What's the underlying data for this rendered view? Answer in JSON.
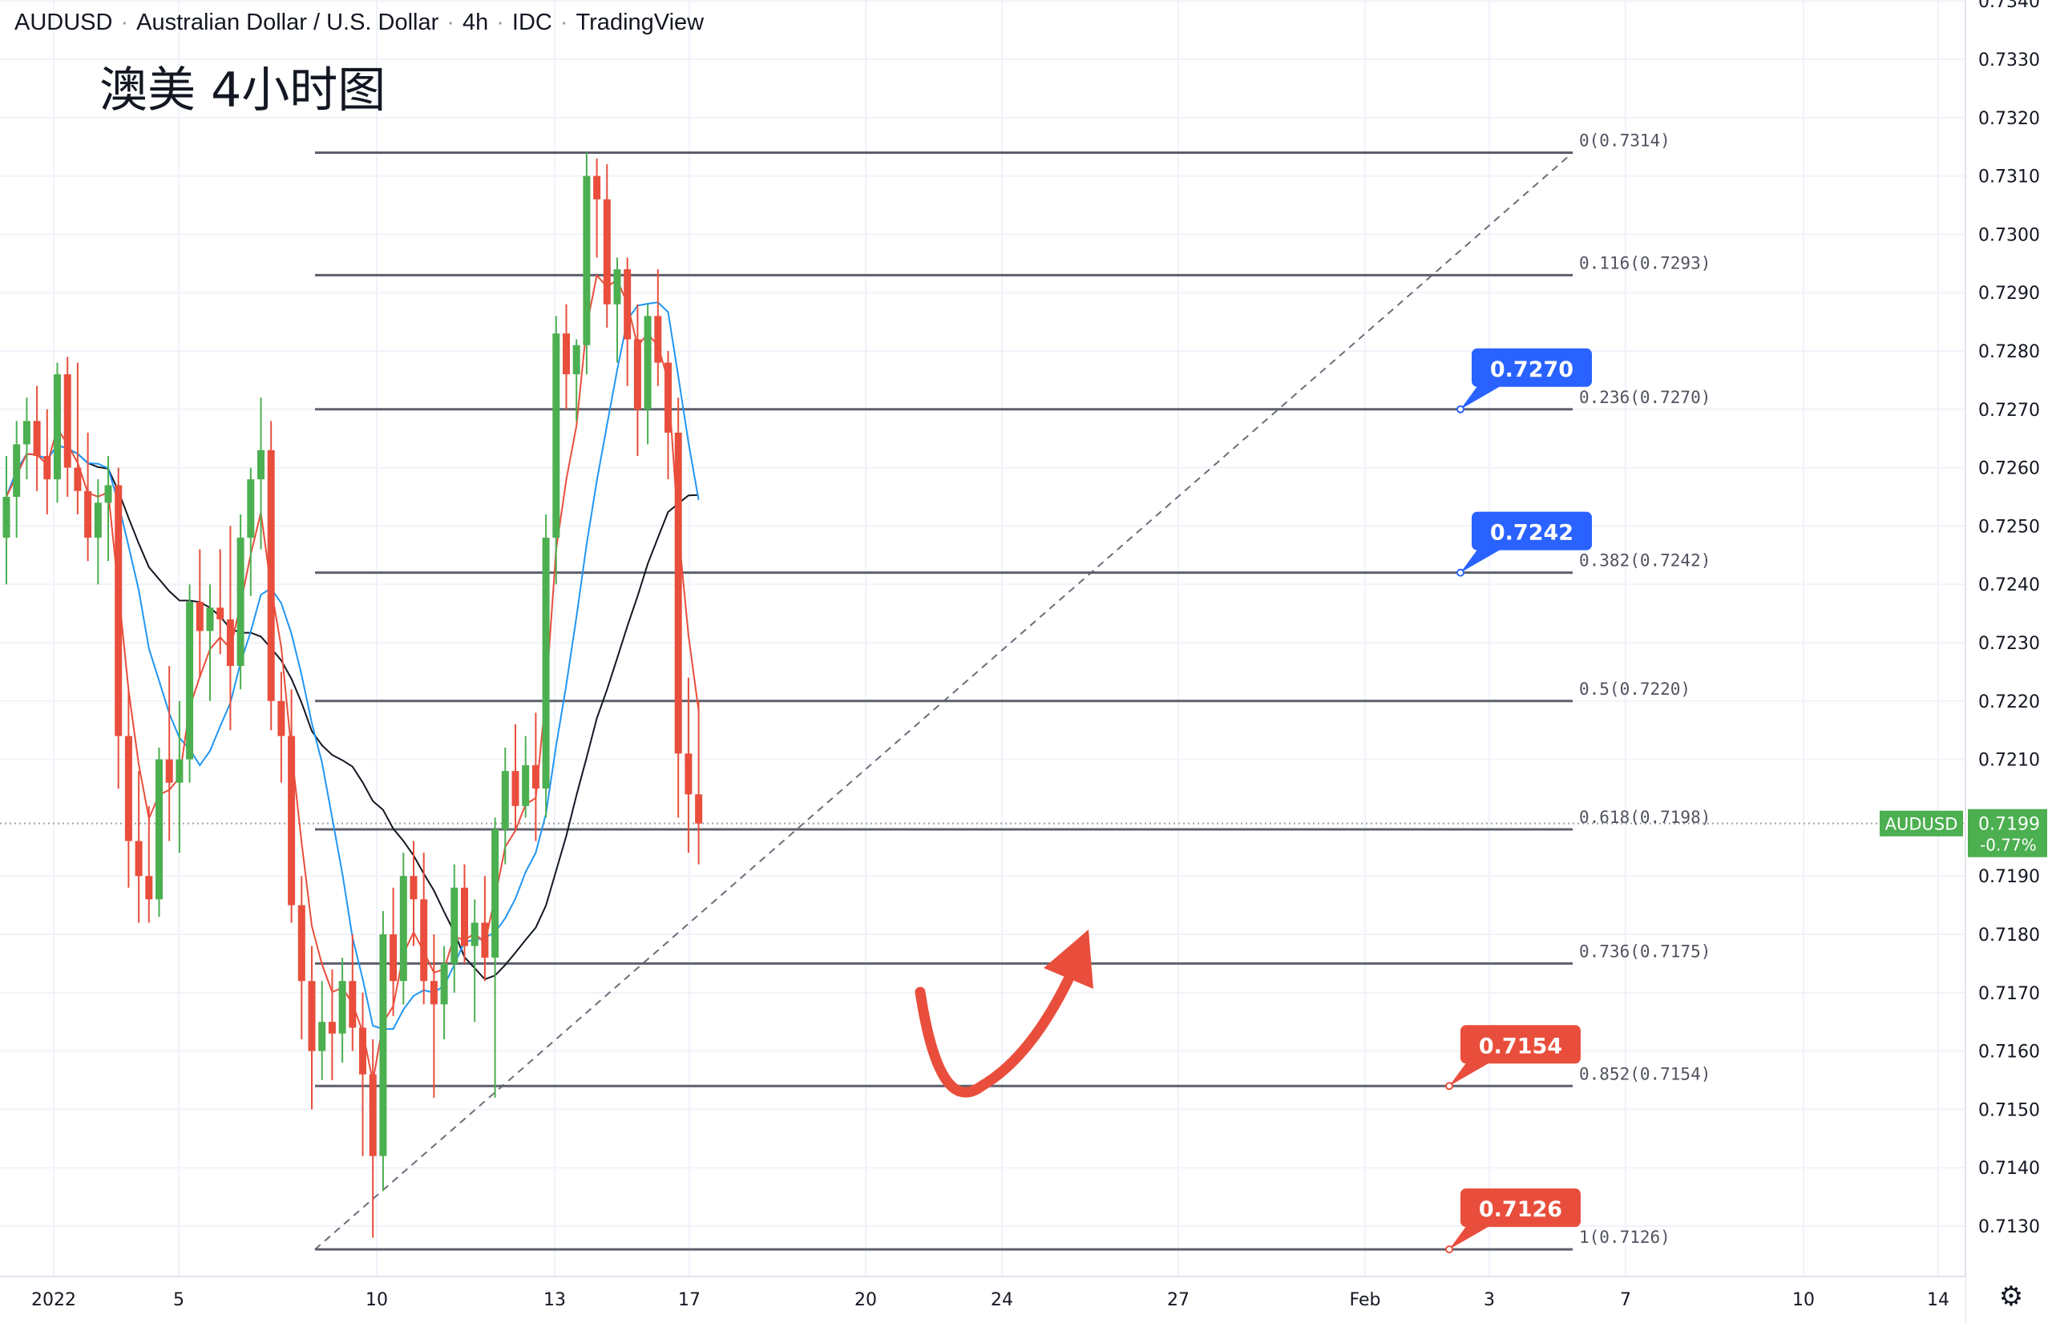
{
  "header": {
    "symbol": "AUDUSD",
    "description": "Australian Dollar / U.S. Dollar",
    "interval": "4h",
    "source": "IDC",
    "provider": "TradingView"
  },
  "annotation_title": "澳美 4小时图",
  "chart_data": {
    "type": "candlestick",
    "symbol": "AUDUSD",
    "ylim": [
      0.7122,
      0.7341
    ],
    "yticks": [
      0.713,
      0.714,
      0.715,
      0.716,
      0.717,
      0.718,
      0.719,
      0.721,
      0.722,
      0.723,
      0.724,
      0.725,
      0.726,
      0.727,
      0.728,
      0.729,
      0.73,
      0.731,
      0.732,
      0.733,
      0.734
    ],
    "x_axis_labels": [
      "2022",
      "5",
      "10",
      "13",
      "17",
      "20",
      "24",
      "27",
      "Feb",
      "3",
      "7",
      "10",
      "14"
    ],
    "last_price": {
      "label": "AUDUSD",
      "value": "0.7199",
      "change": "-0.77%",
      "y": 0.7199
    },
    "fibonacci": {
      "high": 0.7314,
      "low": 0.7126,
      "levels": [
        {
          "label": "0(0.7314)",
          "y": 0.7314
        },
        {
          "label": "0.116(0.7293)",
          "y": 0.7293
        },
        {
          "label": "0.236(0.7270)",
          "y": 0.727
        },
        {
          "label": "0.382(0.7242)",
          "y": 0.7242
        },
        {
          "label": "0.5(0.7220)",
          "y": 0.722
        },
        {
          "label": "0.618(0.7198)",
          "y": 0.7198
        },
        {
          "label": "0.736(0.7175)",
          "y": 0.7175
        },
        {
          "label": "0.852(0.7154)",
          "y": 0.7154
        },
        {
          "label": "1(0.7126)",
          "y": 0.7126
        }
      ]
    },
    "callouts": [
      {
        "text": "0.7270",
        "y": 0.727,
        "color": "#2962ff"
      },
      {
        "text": "0.7242",
        "y": 0.7242,
        "color": "#2962ff"
      },
      {
        "text": "0.7154",
        "y": 0.7154,
        "color": "#e94e3c"
      },
      {
        "text": "0.7126",
        "y": 0.7126,
        "color": "#e94e3c"
      }
    ],
    "candles_ohlc": [
      [
        0.7248,
        0.7262,
        0.724,
        0.7255
      ],
      [
        0.7255,
        0.7268,
        0.7248,
        0.7264
      ],
      [
        0.7264,
        0.7272,
        0.7258,
        0.7268
      ],
      [
        0.7268,
        0.7274,
        0.7256,
        0.7262
      ],
      [
        0.7262,
        0.727,
        0.7252,
        0.7258
      ],
      [
        0.7258,
        0.7278,
        0.7254,
        0.7276
      ],
      [
        0.7276,
        0.7279,
        0.7255,
        0.726
      ],
      [
        0.726,
        0.7278,
        0.7252,
        0.7256
      ],
      [
        0.7256,
        0.7266,
        0.7244,
        0.7248
      ],
      [
        0.7248,
        0.7258,
        0.724,
        0.7254
      ],
      [
        0.7254,
        0.7262,
        0.7244,
        0.7257
      ],
      [
        0.7257,
        0.726,
        0.7205,
        0.7214
      ],
      [
        0.7214,
        0.7222,
        0.7188,
        0.7196
      ],
      [
        0.7196,
        0.7208,
        0.7182,
        0.719
      ],
      [
        0.719,
        0.7202,
        0.7182,
        0.7186
      ],
      [
        0.7186,
        0.7212,
        0.7183,
        0.721
      ],
      [
        0.721,
        0.7226,
        0.7196,
        0.7206
      ],
      [
        0.7206,
        0.722,
        0.7194,
        0.721
      ],
      [
        0.721,
        0.724,
        0.7206,
        0.7237
      ],
      [
        0.7237,
        0.7246,
        0.7224,
        0.7232
      ],
      [
        0.7232,
        0.724,
        0.722,
        0.7236
      ],
      [
        0.7236,
        0.7246,
        0.7228,
        0.7234
      ],
      [
        0.7234,
        0.725,
        0.7215,
        0.7226
      ],
      [
        0.7226,
        0.7252,
        0.7222,
        0.7248
      ],
      [
        0.7248,
        0.726,
        0.7238,
        0.7258
      ],
      [
        0.7258,
        0.7272,
        0.7246,
        0.7263
      ],
      [
        0.7263,
        0.7268,
        0.7215,
        0.722
      ],
      [
        0.722,
        0.7225,
        0.7206,
        0.7214
      ],
      [
        0.7214,
        0.7222,
        0.7182,
        0.7185
      ],
      [
        0.7185,
        0.719,
        0.7162,
        0.7172
      ],
      [
        0.7172,
        0.7178,
        0.715,
        0.716
      ],
      [
        0.716,
        0.7172,
        0.7155,
        0.7165
      ],
      [
        0.7165,
        0.7174,
        0.7155,
        0.7163
      ],
      [
        0.7163,
        0.7176,
        0.7158,
        0.7172
      ],
      [
        0.7172,
        0.718,
        0.716,
        0.7164
      ],
      [
        0.7164,
        0.717,
        0.7142,
        0.7156
      ],
      [
        0.7156,
        0.7162,
        0.7128,
        0.7142
      ],
      [
        0.7142,
        0.7184,
        0.7136,
        0.718
      ],
      [
        0.718,
        0.7188,
        0.7166,
        0.7172
      ],
      [
        0.7172,
        0.7194,
        0.7168,
        0.719
      ],
      [
        0.719,
        0.7196,
        0.7178,
        0.7186
      ],
      [
        0.7186,
        0.7194,
        0.7168,
        0.7172
      ],
      [
        0.7172,
        0.718,
        0.7152,
        0.7168
      ],
      [
        0.7168,
        0.7178,
        0.7162,
        0.7175
      ],
      [
        0.7175,
        0.7192,
        0.717,
        0.7188
      ],
      [
        0.7188,
        0.7192,
        0.7175,
        0.7178
      ],
      [
        0.7178,
        0.7186,
        0.7165,
        0.7182
      ],
      [
        0.7182,
        0.719,
        0.7172,
        0.7176
      ],
      [
        0.7176,
        0.72,
        0.7152,
        0.7198
      ],
      [
        0.7198,
        0.7212,
        0.7192,
        0.7208
      ],
      [
        0.7208,
        0.7216,
        0.7198,
        0.7202
      ],
      [
        0.7202,
        0.7214,
        0.72,
        0.7209
      ],
      [
        0.7209,
        0.7218,
        0.7196,
        0.7205
      ],
      [
        0.7205,
        0.7252,
        0.72,
        0.7248
      ],
      [
        0.7248,
        0.7286,
        0.724,
        0.7283
      ],
      [
        0.7283,
        0.7288,
        0.727,
        0.7276
      ],
      [
        0.7276,
        0.7282,
        0.7268,
        0.7281
      ],
      [
        0.7281,
        0.7314,
        0.7276,
        0.731
      ],
      [
        0.731,
        0.7313,
        0.7296,
        0.7306
      ],
      [
        0.7306,
        0.7312,
        0.7284,
        0.7288
      ],
      [
        0.7288,
        0.7296,
        0.7278,
        0.7294
      ],
      [
        0.7294,
        0.7296,
        0.7274,
        0.7282
      ],
      [
        0.7282,
        0.7288,
        0.7262,
        0.727
      ],
      [
        0.727,
        0.7288,
        0.7264,
        0.7286
      ],
      [
        0.7286,
        0.7294,
        0.7274,
        0.7278
      ],
      [
        0.7278,
        0.728,
        0.7258,
        0.7266
      ],
      [
        0.7266,
        0.7272,
        0.72,
        0.7211
      ],
      [
        0.7211,
        0.7224,
        0.7194,
        0.7204
      ],
      [
        0.7204,
        0.722,
        0.7192,
        0.7199
      ]
    ]
  }
}
